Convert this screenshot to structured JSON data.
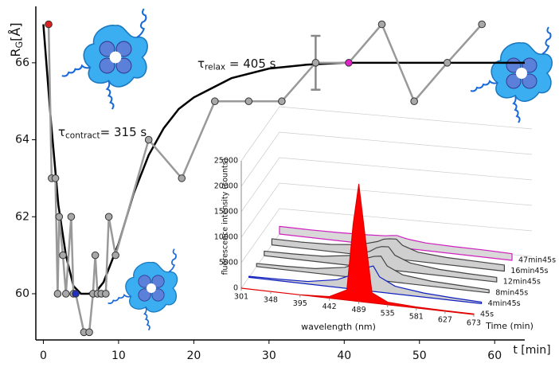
{
  "chart_data": [
    {
      "type": "line",
      "y_label": {
        "symbol": "R",
        "subscript": "G",
        "unit": "[Å]"
      },
      "x_label": "t [min]",
      "xlim": [
        -1,
        64
      ],
      "xticks": [
        0,
        10,
        20,
        30,
        40,
        50,
        60
      ],
      "ylim": [
        58.8,
        67.3
      ],
      "yticks": [
        60,
        62,
        64,
        66
      ],
      "series": [
        {
          "color": "#999999",
          "x": [
            0.7,
            1.1,
            1.6,
            1.9,
            2.1,
            2.6,
            3.0,
            3.7,
            4.0,
            4.3,
            5.4,
            6.1,
            6.6,
            6.9,
            7.2,
            7.7,
            8.3,
            8.7,
            9.6,
            14.0,
            18.4,
            22.8,
            27.3,
            31.7,
            36.2,
            40.6,
            45.0,
            49.3,
            53.7,
            58.3
          ],
          "values": [
            67,
            63,
            63,
            60,
            62,
            61,
            60,
            62,
            60,
            60,
            59,
            59,
            60,
            61,
            60,
            60,
            60,
            62,
            61,
            64,
            63,
            65,
            65,
            65,
            66,
            66,
            67,
            65,
            66,
            67
          ],
          "errors": [
            null,
            null,
            null,
            null,
            null,
            null,
            null,
            null,
            null,
            null,
            null,
            null,
            null,
            null,
            null,
            null,
            null,
            null,
            null,
            null,
            null,
            null,
            null,
            null,
            0.7,
            null,
            null,
            null,
            null,
            null
          ],
          "marker_colors": [
            "#e02020",
            "#a8a8a8",
            "#a8a8a8",
            "#a8a8a8",
            "#a8a8a8",
            "#a8a8a8",
            "#a8a8a8",
            "#a8a8a8",
            "#a8a8a8",
            "#2030c0",
            "#a8a8a8",
            "#a8a8a8",
            "#a8a8a8",
            "#a8a8a8",
            "#a8a8a8",
            "#a8a8a8",
            "#a8a8a8",
            "#a8a8a8",
            "#a8a8a8",
            "#a8a8a8",
            "#a8a8a8",
            "#a8a8a8",
            "#a8a8a8",
            "#a8a8a8",
            "#a8a8a8",
            "#e020c8",
            "#a8a8a8",
            "#a8a8a8",
            "#a8a8a8",
            "#a8a8a8"
          ]
        },
        {
          "color": "#000000",
          "x": [
            0,
            1,
            2,
            3,
            4,
            5,
            6,
            7,
            8,
            10,
            12,
            14,
            16,
            18,
            20,
            25,
            30,
            35,
            40,
            50,
            64
          ],
          "values": [
            67,
            64.5,
            62.3,
            61,
            60.2,
            60,
            60,
            60.05,
            60.3,
            61.3,
            62.6,
            63.6,
            64.3,
            64.8,
            65.1,
            65.6,
            65.85,
            65.95,
            66,
            66,
            66
          ]
        }
      ],
      "annotations": [
        {
          "symbol": "τ",
          "subscript": "relax",
          "text": " = 405 s"
        },
        {
          "symbol": "τ",
          "subscript": "contract",
          "text": "= 315 s"
        }
      ]
    },
    {
      "type": "waterfall",
      "y_label": "fluorescence intensity (counts)",
      "x_label": "wavelength (nm)",
      "z_label": "Time (min)",
      "xlim": [
        301,
        673
      ],
      "xticks": [
        301,
        348,
        395,
        442,
        489,
        535,
        581,
        627,
        673
      ],
      "ylim": [
        0,
        25000
      ],
      "yticks": [
        0,
        5000,
        10000,
        15000,
        20000,
        25000
      ],
      "x": [
        301,
        348,
        395,
        442,
        470,
        480,
        489,
        500,
        510,
        535,
        581,
        627,
        673
      ],
      "series": [
        {
          "name": "45s",
          "color": "#e00000",
          "fill": "#ff0000",
          "values": [
            0,
            0,
            0,
            300,
            2000,
            15000,
            23000,
            12000,
            2000,
            500,
            200,
            100,
            100
          ]
        },
        {
          "name": "4min45s",
          "color": "#1020c0",
          "fill": "#cfcfcf",
          "values": [
            200,
            300,
            500,
            1500,
            3000,
            4000,
            4500,
            5000,
            3000,
            1500,
            800,
            500,
            300
          ]
        },
        {
          "name": "8min45s",
          "color": "#444444",
          "fill": "#cfcfcf",
          "values": [
            600,
            700,
            900,
            1800,
            3200,
            4200,
            4600,
            4800,
            3000,
            1600,
            1000,
            800,
            600
          ]
        },
        {
          "name": "12min45s",
          "color": "#444444",
          "fill": "#cfcfcf",
          "values": [
            900,
            1000,
            1200,
            2000,
            3200,
            4000,
            4400,
            4500,
            3000,
            1800,
            1200,
            1000,
            900
          ]
        },
        {
          "name": "16min45s",
          "color": "#444444",
          "fill": "#cfcfcf",
          "values": [
            1200,
            1200,
            1400,
            2000,
            3000,
            3600,
            3800,
            3900,
            2800,
            1800,
            1400,
            1300,
            1200
          ]
        },
        {
          "name": "47min45s",
          "color": "#d020c0",
          "fill": "#d8d8d8",
          "values": [
            1500,
            1500,
            1600,
            1800,
            2000,
            2200,
            2300,
            2000,
            1800,
            1500,
            1400,
            1400,
            1300
          ]
        }
      ]
    }
  ]
}
